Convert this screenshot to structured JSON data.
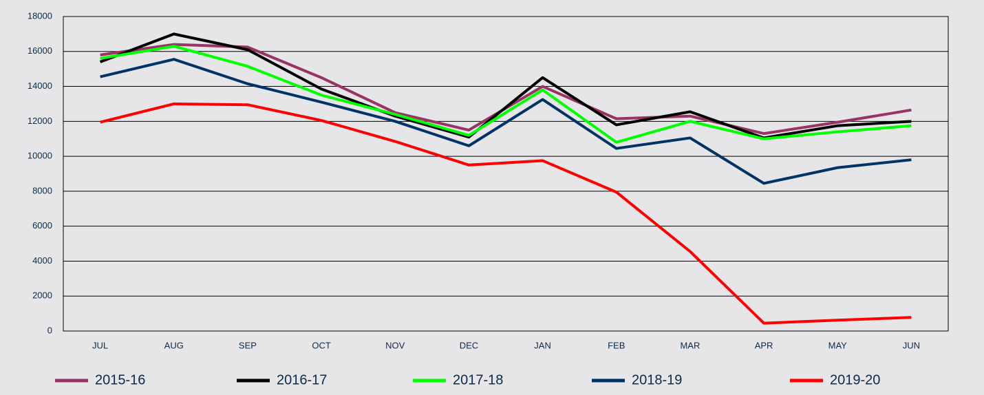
{
  "chart_data": {
    "type": "line",
    "categories": [
      "JUL",
      "AUG",
      "SEP",
      "OCT",
      "NOV",
      "DEC",
      "JAN",
      "FEB",
      "MAR",
      "APR",
      "MAY",
      "JUN"
    ],
    "series": [
      {
        "name": "2015-16",
        "color": "#993366",
        "values": [
          15800,
          16400,
          16250,
          14500,
          12500,
          11500,
          14000,
          12150,
          12300,
          11300,
          11950,
          12650
        ]
      },
      {
        "name": "2016-17",
        "color": "#000000",
        "values": [
          15400,
          17000,
          16100,
          13850,
          12300,
          11100,
          14500,
          11800,
          12550,
          11050,
          11750,
          12000
        ]
      },
      {
        "name": "2017-18",
        "color": "#00ff00",
        "values": [
          15600,
          16300,
          15150,
          13500,
          12400,
          11200,
          13800,
          10800,
          12000,
          11000,
          11400,
          11750
        ]
      },
      {
        "name": "2018-19",
        "color": "#003366",
        "values": [
          14550,
          15550,
          14150,
          13100,
          12000,
          10600,
          13250,
          10450,
          11050,
          8450,
          9350,
          9800
        ]
      },
      {
        "name": "2019-20",
        "color": "#ff0000",
        "values": [
          11950,
          13000,
          12950,
          12050,
          10850,
          9500,
          9750,
          7950,
          4550,
          450,
          620,
          780
        ]
      }
    ],
    "ylim": [
      0,
      18000
    ],
    "yticks": [
      0,
      2000,
      4000,
      6000,
      8000,
      10000,
      12000,
      14000,
      16000,
      18000
    ],
    "grid": true,
    "legend": "bottom"
  }
}
